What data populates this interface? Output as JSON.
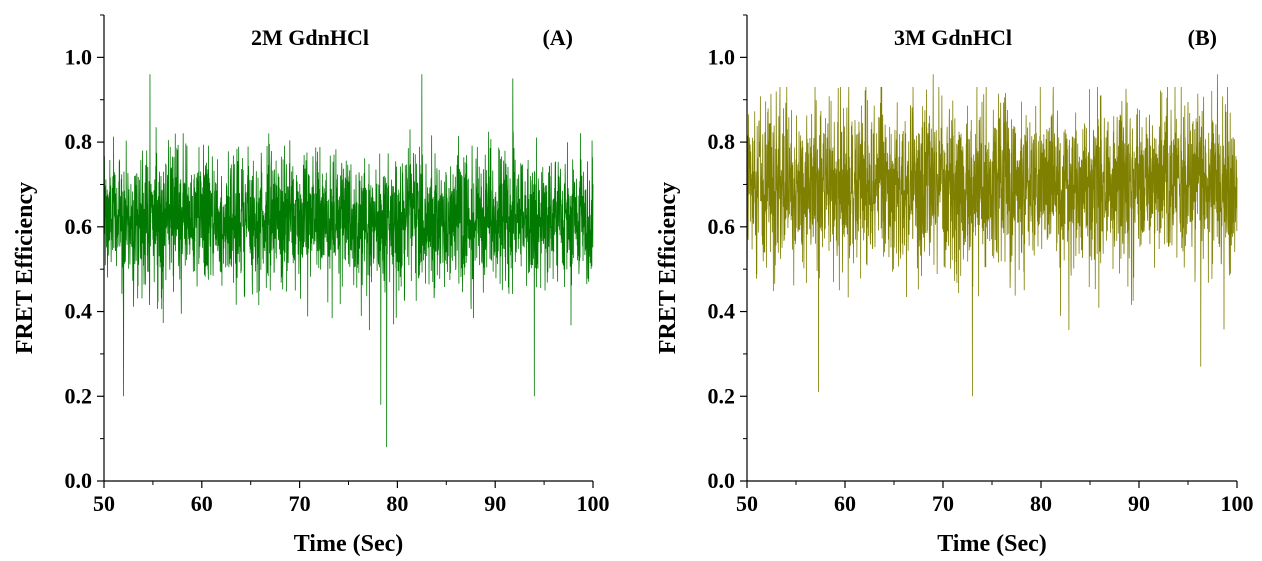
{
  "chart_data": [
    {
      "type": "line",
      "panel_label": "(A)",
      "title": "2M GdnHCl",
      "xlabel": "Time (Sec)",
      "ylabel": "FRET Efficiency",
      "xlim": [
        50,
        100
      ],
      "ylim": [
        0.0,
        1.1
      ],
      "xticks": [
        50,
        60,
        70,
        80,
        90,
        100
      ],
      "yticks": [
        0.0,
        0.2,
        0.4,
        0.6,
        0.8,
        1.0
      ],
      "xtick_labels": [
        "50",
        "60",
        "70",
        "80",
        "90",
        "100"
      ],
      "ytick_labels": [
        "0.0",
        "0.2",
        "0.4",
        "0.6",
        "0.8",
        "1.0"
      ],
      "grid": false,
      "legend": "none",
      "series": [
        {
          "color": "#007A00",
          "description_stats": {
            "mean": 0.62,
            "dense_band": [
              0.45,
              0.78
            ],
            "approx_max": 0.96,
            "approx_min": 0.08
          },
          "notable_points": [
            {
              "x": 54.7,
              "y": 0.96
            },
            {
              "x": 82.5,
              "y": 0.96
            },
            {
              "x": 91.8,
              "y": 0.95
            },
            {
              "x": 52.0,
              "y": 0.2
            },
            {
              "x": 78.3,
              "y": 0.18
            },
            {
              "x": 78.9,
              "y": 0.08
            },
            {
              "x": 94.0,
              "y": 0.2
            }
          ]
        }
      ]
    },
    {
      "type": "line",
      "panel_label": "(B)",
      "title": "3M GdnHCl",
      "xlabel": "Time (Sec)",
      "ylabel": "FRET Efficiency",
      "xlim": [
        50,
        100
      ],
      "ylim": [
        0.0,
        1.1
      ],
      "xticks": [
        50,
        60,
        70,
        80,
        90,
        100
      ],
      "yticks": [
        0.0,
        0.2,
        0.4,
        0.6,
        0.8,
        1.0
      ],
      "xtick_labels": [
        "50",
        "60",
        "70",
        "80",
        "90",
        "100"
      ],
      "ytick_labels": [
        "0.0",
        "0.2",
        "0.4",
        "0.6",
        "0.8",
        "1.0"
      ],
      "grid": false,
      "legend": "none",
      "series": [
        {
          "color": "#7F7F00",
          "description_stats": {
            "mean": 0.7,
            "dense_band": [
              0.5,
              0.9
            ],
            "approx_max": 0.96,
            "approx_min": 0.2
          },
          "notable_points": [
            {
              "x": 69.0,
              "y": 0.96
            },
            {
              "x": 98.0,
              "y": 0.96
            },
            {
              "x": 57.3,
              "y": 0.21
            },
            {
              "x": 73.0,
              "y": 0.2
            },
            {
              "x": 96.3,
              "y": 0.27
            }
          ]
        }
      ]
    }
  ]
}
